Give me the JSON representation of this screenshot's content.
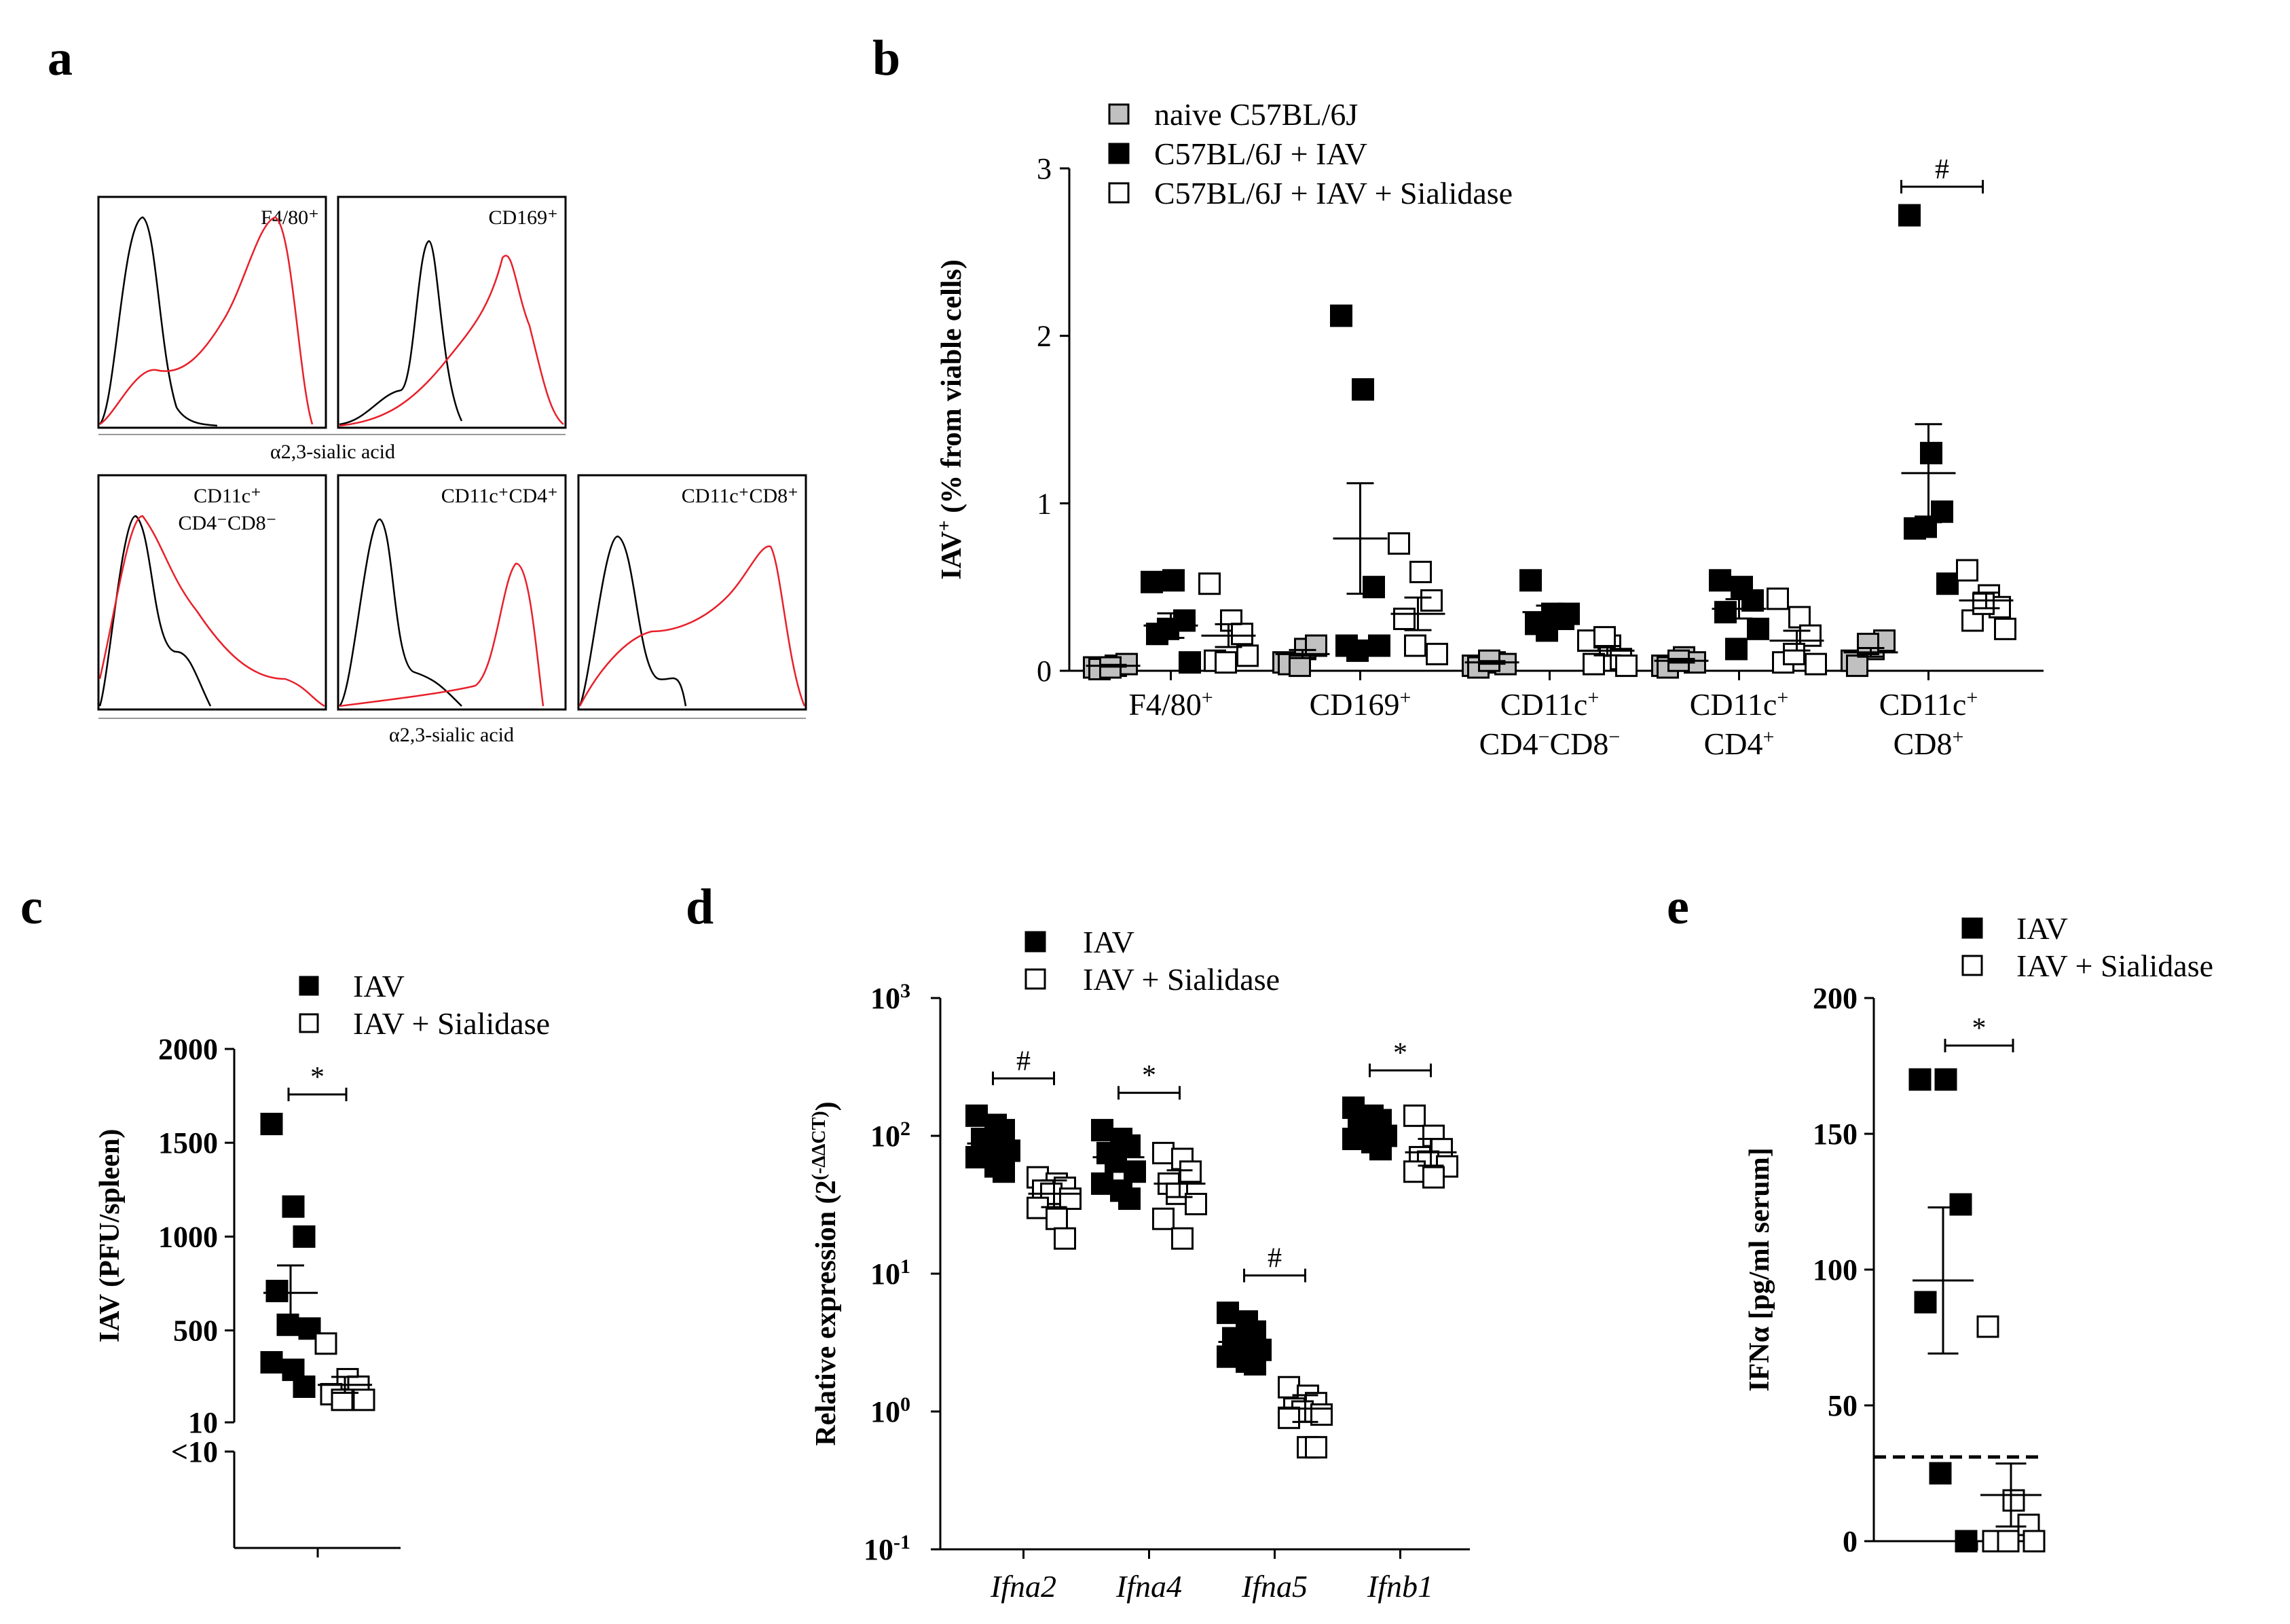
{
  "panel_labels": [
    "a",
    "b",
    "c",
    "d",
    "e"
  ],
  "colors": {
    "naive": "#c0c0c0",
    "iav": "#000000",
    "sialidase": "#ffffff",
    "histogram_control": "#000000",
    "histogram_stain": "#e8202a"
  },
  "panel_a": {
    "xlabel": "α2,3-sialic acid",
    "top_labels": [
      "F4/80⁺",
      "CD169⁺"
    ],
    "bottom_labels": [
      [
        "CD11c⁺",
        "CD4⁻CD8⁻"
      ],
      [
        "CD11c⁺CD4⁺"
      ],
      [
        "CD11c⁺CD8⁺"
      ]
    ]
  },
  "chart_data": [
    {
      "id": "b",
      "type": "scatter",
      "ylabel_main": "IAV",
      "ylabel_sup": "+",
      "ylabel_rest": " (% from viable cells)",
      "ylim": [
        0,
        3
      ],
      "yticks": [
        "0",
        "1",
        "2",
        "3"
      ],
      "categories": [
        {
          "lines": [
            {
              "t": "F4/80",
              "s": "+"
            }
          ]
        },
        {
          "lines": [
            {
              "t": "CD169",
              "s": "+"
            }
          ]
        },
        {
          "lines": [
            {
              "t": "CD11c",
              "s": "+"
            },
            {
              "t": "CD4",
              "s": "−",
              "t2": "CD8",
              "s2": "−"
            }
          ]
        },
        {
          "lines": [
            {
              "t": "CD11c",
              "s": "+"
            },
            {
              "t": "CD4",
              "s": "+"
            }
          ]
        },
        {
          "lines": [
            {
              "t": "CD11c",
              "s": "+"
            },
            {
              "t": "CD8",
              "s": "+"
            }
          ]
        }
      ],
      "series": [
        {
          "name": "naive C57BL/6J",
          "fill": "#c0c0c0",
          "groups": [
            [
              0.02,
              0.03,
              0.04,
              0.01,
              0.02
            ],
            [
              0.05,
              0.13,
              0.15,
              0.04,
              0.03
            ],
            [
              0.03,
              0.05,
              0.04,
              0.02,
              0.06
            ],
            [
              0.03,
              0.08,
              0.05,
              0.02,
              0.06
            ],
            [
              0.06,
              0.13,
              0.18,
              0.03,
              0.16
            ]
          ],
          "means": [
            0.03,
            0.1,
            0.05,
            0.06,
            0.11
          ]
        },
        {
          "name": "C57BL/6J + IAV",
          "fill": "#000000",
          "groups": [
            [
              0.53,
              0.54,
              0.3,
              0.22,
              0.25,
              0.05
            ],
            [
              2.12,
              1.68,
              0.5,
              0.15,
              0.12,
              0.15
            ],
            [
              0.54,
              0.34,
              0.31,
              0.28,
              0.24,
              0.34
            ],
            [
              0.54,
              0.5,
              0.42,
              0.35,
              0.13,
              0.25
            ],
            [
              2.72,
              1.3,
              0.95,
              0.85,
              0.86,
              0.52
            ]
          ],
          "means": [
            0.27,
            0.79,
            0.35,
            0.37,
            1.18
          ]
        },
        {
          "name": "C57BL/6J + IAV + Sialidase",
          "fill": "#ffffff",
          "groups": [
            [
              0.52,
              0.3,
              0.22,
              0.06,
              0.05,
              0.09
            ],
            [
              0.76,
              0.59,
              0.42,
              0.31,
              0.15,
              0.1
            ],
            [
              0.18,
              0.15,
              0.07,
              0.04,
              0.2,
              0.03
            ],
            [
              0.43,
              0.32,
              0.21,
              0.05,
              0.1,
              0.04
            ],
            [
              0.6,
              0.45,
              0.38,
              0.3,
              0.4,
              0.25
            ]
          ],
          "means": [
            0.21,
            0.34,
            0.12,
            0.18,
            0.42
          ]
        }
      ],
      "significance": [
        {
          "category_index": 4,
          "label": "#"
        }
      ],
      "legend_position": "top"
    },
    {
      "id": "c",
      "type": "scatter",
      "ylabel_main": "IAV",
      "ylabel_rest": " (PFU/spleen)",
      "ylim": [
        10,
        2000
      ],
      "axis_break": true,
      "yticks": [
        "2000",
        "1500",
        "1000",
        "500",
        "10",
        "<10"
      ],
      "series": [
        {
          "name": "IAV",
          "fill": "#000000",
          "values": [
            1600,
            1160,
            1000,
            710,
            530,
            510,
            330,
            290,
            200
          ],
          "mean": 700
        },
        {
          "name": "IAV + Sialidase",
          "fill": "#ffffff",
          "values": [
            430,
            240,
            200,
            160,
            130,
            130
          ],
          "mean": 210
        }
      ],
      "significance": [
        {
          "label": "*"
        }
      ],
      "legend_position": "top"
    },
    {
      "id": "d",
      "type": "scatter",
      "scale": "log",
      "ylabel_main": "Relative expression (2",
      "ylabel_sup": "(-ΔΔCT)",
      "ylabel_rest": ")",
      "ylim": [
        0.1,
        1000
      ],
      "yticks": [
        {
          "base": "10",
          "exp": "3"
        },
        {
          "base": "10",
          "exp": "2"
        },
        {
          "base": "10",
          "exp": "1"
        },
        {
          "base": "10",
          "exp": "0"
        },
        {
          "base": "10",
          "exp": "-1"
        }
      ],
      "categories": [
        "Ifna2",
        "Ifna4",
        "Ifna5",
        "Ifnb1"
      ],
      "series": [
        {
          "name": "IAV",
          "fill": "#000000",
          "groups": [
            [
              140,
              120,
              110,
              95,
              85,
              78,
              70,
              60,
              55
            ],
            [
              110,
              95,
              85,
              75,
              65,
              55,
              45,
              40,
              35
            ],
            [
              5.2,
              4.5,
              3.8,
              3.4,
              3.1,
              2.8,
              2.5,
              2.3,
              2.2
            ],
            [
              160,
              140,
              130,
              120,
              110,
              100,
              95,
              90,
              80
            ]
          ],
          "means": [
            88,
            70,
            3.2,
            112
          ]
        },
        {
          "name": "IAV + Sialidase",
          "fill": "#ffffff",
          "groups": [
            [
              50,
              45,
              42,
              40,
              38,
              35,
              30,
              25,
              18
            ],
            [
              75,
              68,
              55,
              45,
              38,
              32,
              25,
              18
            ],
            [
              1.5,
              1.3,
              1.15,
              1.05,
              1.0,
              0.95,
              0.9,
              0.55,
              0.55
            ],
            [
              140,
              100,
              80,
              70,
              65,
              60,
              55,
              50
            ]
          ],
          "means": [
            38,
            45,
            1.05,
            76
          ]
        }
      ],
      "significance": [
        {
          "category_index": 0,
          "label": "#"
        },
        {
          "category_index": 1,
          "label": "*"
        },
        {
          "category_index": 2,
          "label": "#"
        },
        {
          "category_index": 3,
          "label": "*"
        }
      ],
      "legend_position": "top"
    },
    {
      "id": "e",
      "type": "scatter",
      "ylabel_main": "IFNα [pg/ml serum]",
      "ylim": [
        0,
        200
      ],
      "yticks": [
        "200",
        "150",
        "100",
        "50",
        "0"
      ],
      "threshold": 31,
      "series": [
        {
          "name": "IAV",
          "fill": "#000000",
          "values": [
            170,
            170,
            124,
            88,
            25,
            0
          ],
          "mean": 96
        },
        {
          "name": "IAV + Sialidase",
          "fill": "#ffffff",
          "values": [
            79,
            15,
            6,
            0,
            0,
            0
          ],
          "mean": 17
        }
      ],
      "significance": [
        {
          "label": "*"
        }
      ],
      "legend_position": "top-right"
    }
  ]
}
